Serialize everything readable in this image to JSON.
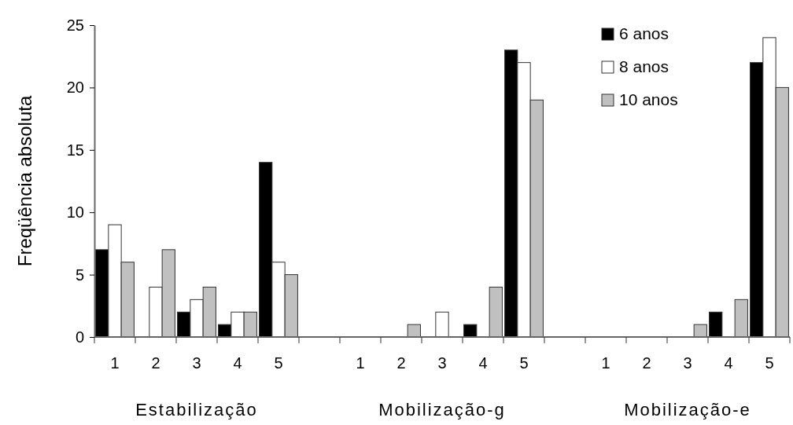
{
  "chart_data": {
    "type": "bar",
    "ylabel": "Freqüência absoluta",
    "categories": [
      "1",
      "2",
      "3",
      "4",
      "5",
      null,
      "1",
      "2",
      "3",
      "4",
      "5",
      null,
      "1",
      "2",
      "3",
      "4",
      "5"
    ],
    "series": [
      {
        "name": "6 anos",
        "color": "#000000",
        "values": [
          7,
          0,
          2,
          1,
          14,
          null,
          0,
          0,
          0,
          1,
          23,
          null,
          0,
          0,
          0,
          2,
          22
        ]
      },
      {
        "name": "8 anos",
        "color": "#ffffff",
        "values": [
          9,
          4,
          3,
          2,
          6,
          null,
          0,
          0,
          2,
          0,
          22,
          null,
          0,
          0,
          0,
          0,
          24
        ]
      },
      {
        "name": "10 anos",
        "color": "#c0c0c0",
        "values": [
          6,
          7,
          4,
          2,
          5,
          null,
          0,
          1,
          0,
          4,
          19,
          null,
          0,
          0,
          1,
          3,
          20
        ]
      }
    ],
    "ylim": [
      0,
      25
    ],
    "yticks": [
      0,
      5,
      10,
      15,
      20,
      25
    ],
    "grid": false,
    "legend": "top right",
    "annotations": [
      "Estabilização",
      "Mobilização-g",
      "Mobilização-e"
    ]
  }
}
